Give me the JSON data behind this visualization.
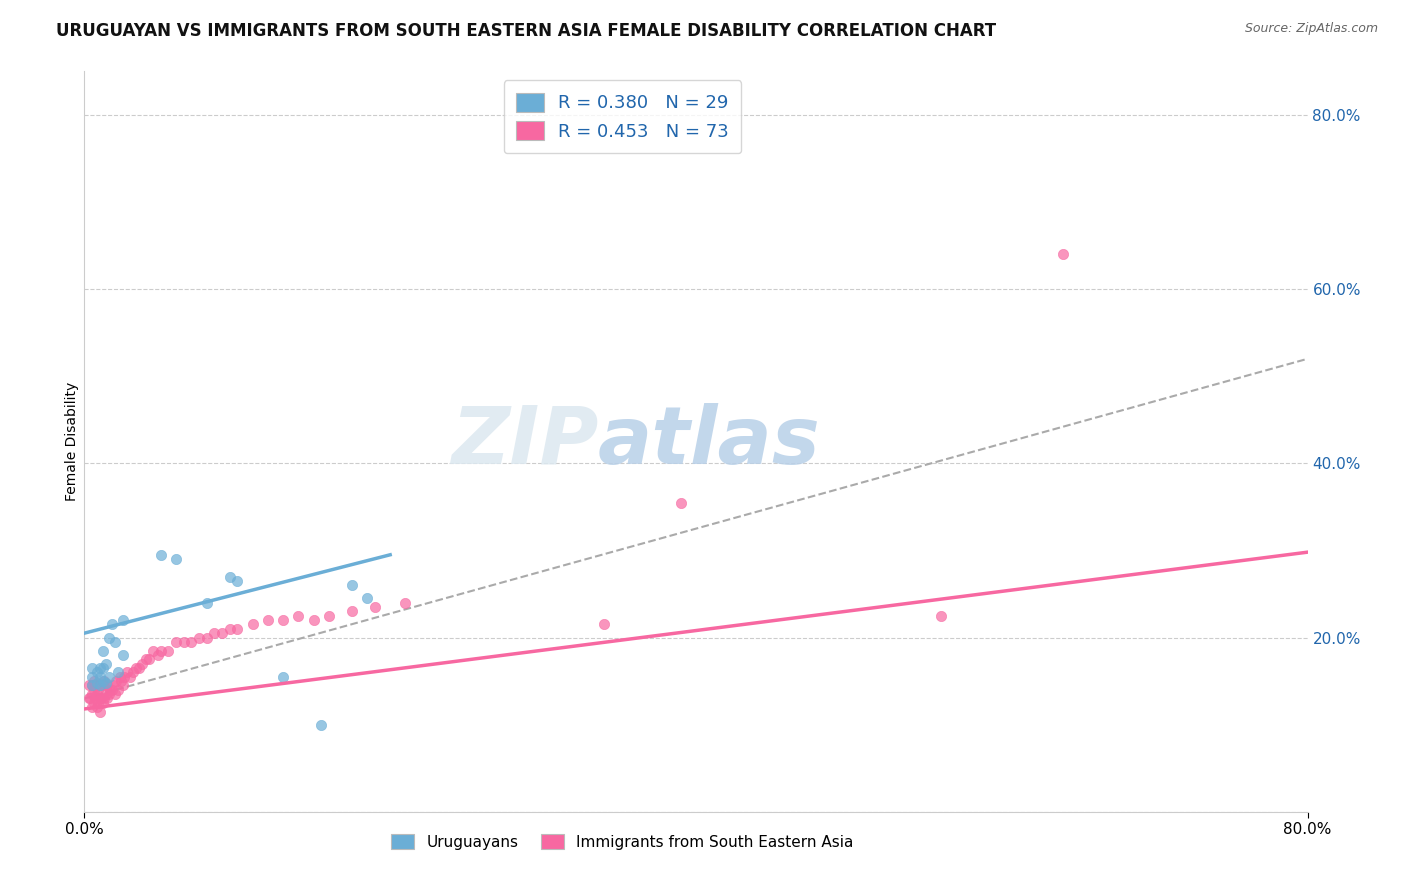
{
  "title": "URUGUAYAN VS IMMIGRANTS FROM SOUTH EASTERN ASIA FEMALE DISABILITY CORRELATION CHART",
  "source": "Source: ZipAtlas.com",
  "ylabel": "Female Disability",
  "x_min": 0.0,
  "x_max": 0.8,
  "y_min": 0.0,
  "y_max": 0.85,
  "uruguayan_color": "#6baed6",
  "immigrant_color": "#f768a1",
  "uruguayan_R": 0.38,
  "uruguayan_N": 29,
  "immigrant_R": 0.453,
  "immigrant_N": 73,
  "legend_text_color": "#2166ac",
  "watermark_part1": "ZIP",
  "watermark_part2": "atlas",
  "uruguayan_scatter_x": [
    0.005,
    0.005,
    0.005,
    0.008,
    0.008,
    0.01,
    0.01,
    0.01,
    0.012,
    0.012,
    0.012,
    0.014,
    0.014,
    0.016,
    0.016,
    0.018,
    0.02,
    0.022,
    0.025,
    0.025,
    0.05,
    0.06,
    0.08,
    0.095,
    0.1,
    0.13,
    0.155,
    0.175,
    0.185
  ],
  "uruguayan_scatter_y": [
    0.145,
    0.155,
    0.165,
    0.148,
    0.16,
    0.145,
    0.155,
    0.165,
    0.15,
    0.165,
    0.185,
    0.148,
    0.17,
    0.2,
    0.155,
    0.215,
    0.195,
    0.16,
    0.22,
    0.18,
    0.295,
    0.29,
    0.24,
    0.27,
    0.265,
    0.155,
    0.1,
    0.26,
    0.245
  ],
  "immigrant_scatter_x": [
    0.003,
    0.003,
    0.004,
    0.005,
    0.005,
    0.005,
    0.006,
    0.006,
    0.006,
    0.007,
    0.007,
    0.008,
    0.008,
    0.008,
    0.009,
    0.009,
    0.01,
    0.01,
    0.01,
    0.011,
    0.011,
    0.012,
    0.012,
    0.013,
    0.013,
    0.014,
    0.015,
    0.015,
    0.016,
    0.017,
    0.018,
    0.019,
    0.02,
    0.021,
    0.022,
    0.023,
    0.024,
    0.025,
    0.026,
    0.028,
    0.03,
    0.032,
    0.034,
    0.036,
    0.038,
    0.04,
    0.042,
    0.045,
    0.048,
    0.05,
    0.055,
    0.06,
    0.065,
    0.07,
    0.075,
    0.08,
    0.085,
    0.09,
    0.095,
    0.1,
    0.11,
    0.12,
    0.13,
    0.14,
    0.15,
    0.16,
    0.175,
    0.19,
    0.21,
    0.34,
    0.39,
    0.56,
    0.64
  ],
  "immigrant_scatter_y": [
    0.13,
    0.145,
    0.13,
    0.12,
    0.135,
    0.145,
    0.125,
    0.14,
    0.15,
    0.13,
    0.145,
    0.12,
    0.135,
    0.145,
    0.125,
    0.14,
    0.115,
    0.13,
    0.145,
    0.13,
    0.145,
    0.125,
    0.145,
    0.13,
    0.15,
    0.135,
    0.13,
    0.145,
    0.135,
    0.14,
    0.14,
    0.145,
    0.135,
    0.15,
    0.14,
    0.155,
    0.15,
    0.145,
    0.155,
    0.16,
    0.155,
    0.16,
    0.165,
    0.165,
    0.17,
    0.175,
    0.175,
    0.185,
    0.18,
    0.185,
    0.185,
    0.195,
    0.195,
    0.195,
    0.2,
    0.2,
    0.205,
    0.205,
    0.21,
    0.21,
    0.215,
    0.22,
    0.22,
    0.225,
    0.22,
    0.225,
    0.23,
    0.235,
    0.24,
    0.215,
    0.355,
    0.225,
    0.64
  ],
  "uru_regline_x": [
    0.0,
    0.2
  ],
  "uru_regline_y": [
    0.205,
    0.295
  ],
  "imm_regline_x": [
    0.0,
    0.8
  ],
  "imm_regline_y": [
    0.118,
    0.298
  ],
  "gray_regline_x": [
    0.0,
    0.8
  ],
  "gray_regline_y": [
    0.13,
    0.52
  ]
}
